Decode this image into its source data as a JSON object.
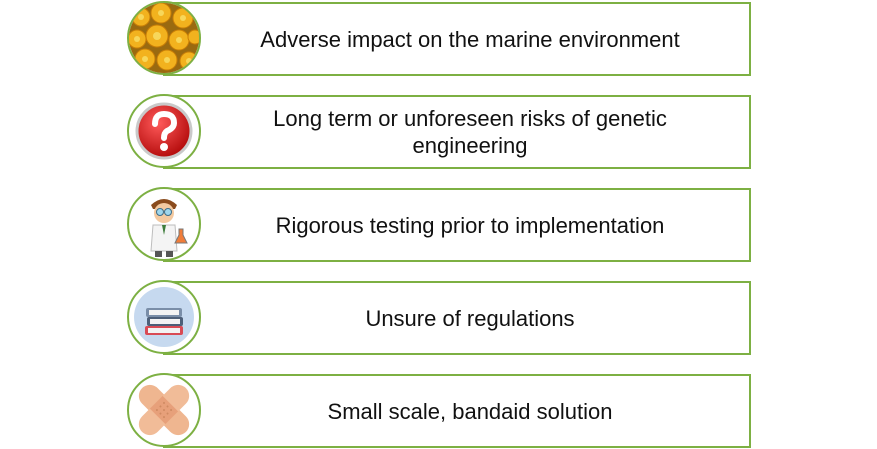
{
  "colors": {
    "border": "#7db043",
    "text": "#111111"
  },
  "items": [
    {
      "icon": "coral-icon",
      "label": "Adverse impact on the marine environment"
    },
    {
      "icon": "question-mark-icon",
      "label": "Long term or unforeseen risks of genetic engineering"
    },
    {
      "icon": "scientist-icon",
      "label": "Rigorous testing prior to implementation"
    },
    {
      "icon": "books-icon",
      "label": "Unsure of regulations"
    },
    {
      "icon": "bandaid-icon",
      "label": "Small scale, bandaid solution"
    }
  ]
}
